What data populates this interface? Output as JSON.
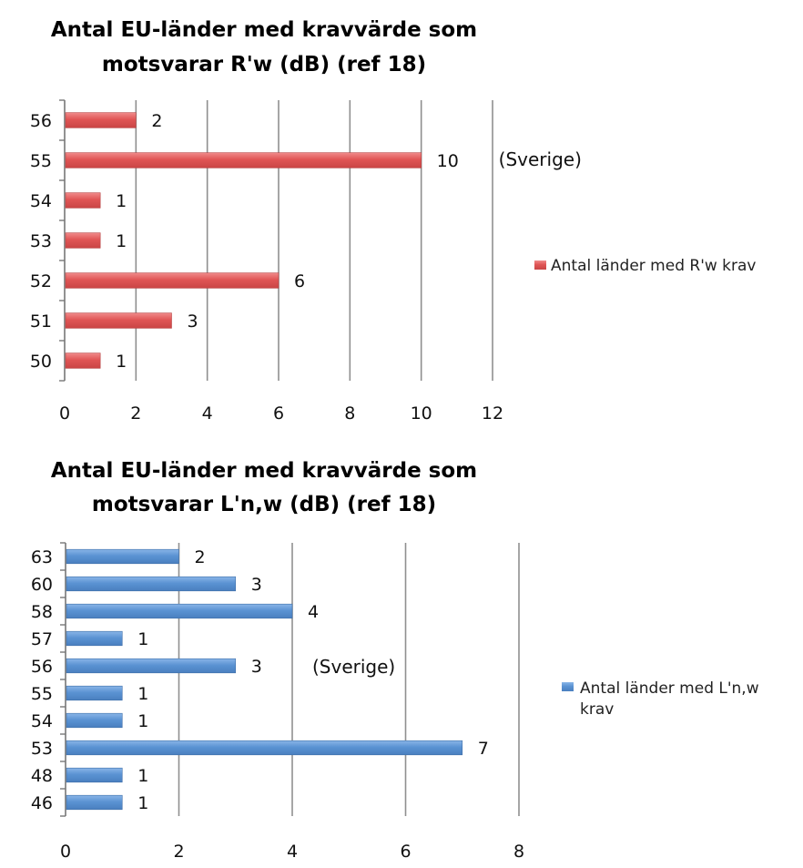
{
  "chart_data": [
    {
      "type": "bar",
      "orientation": "horizontal",
      "title": [
        "Antal EU-länder med kravvärde som",
        "motsvarar R'w (dB)  (ref 18)"
      ],
      "categories": [
        "50",
        "51",
        "52",
        "53",
        "54",
        "55",
        "56"
      ],
      "series": [
        {
          "name": "Antal länder med R'w krav",
          "color": "#e05a5a",
          "values": [
            1,
            3,
            6,
            1,
            1,
            10,
            2
          ]
        }
      ],
      "xlim": [
        0,
        12
      ],
      "xticks": [
        "0",
        "2",
        "4",
        "6",
        "8",
        "10",
        "12"
      ],
      "grid": true,
      "legend": "right",
      "annotation": {
        "text": "(Sverige)",
        "category": "55"
      }
    },
    {
      "type": "bar",
      "orientation": "horizontal",
      "title": [
        "Antal EU-länder med kravvärde som",
        "motsvarar L'n,w (dB)  (ref 18)"
      ],
      "categories": [
        "46",
        "48",
        "53",
        "54",
        "55",
        "56",
        "57",
        "58",
        "60",
        "63"
      ],
      "series": [
        {
          "name": "Antal länder med L'n,w krav",
          "color": "#5b93d3",
          "values": [
            1,
            1,
            7,
            1,
            1,
            3,
            1,
            4,
            3,
            2
          ]
        }
      ],
      "xlim": [
        0,
        8
      ],
      "xticks": [
        "0",
        "2",
        "4",
        "6",
        "8"
      ],
      "grid": true,
      "legend": "right",
      "annotation": {
        "text": "(Sverige)",
        "category": "56"
      }
    }
  ]
}
